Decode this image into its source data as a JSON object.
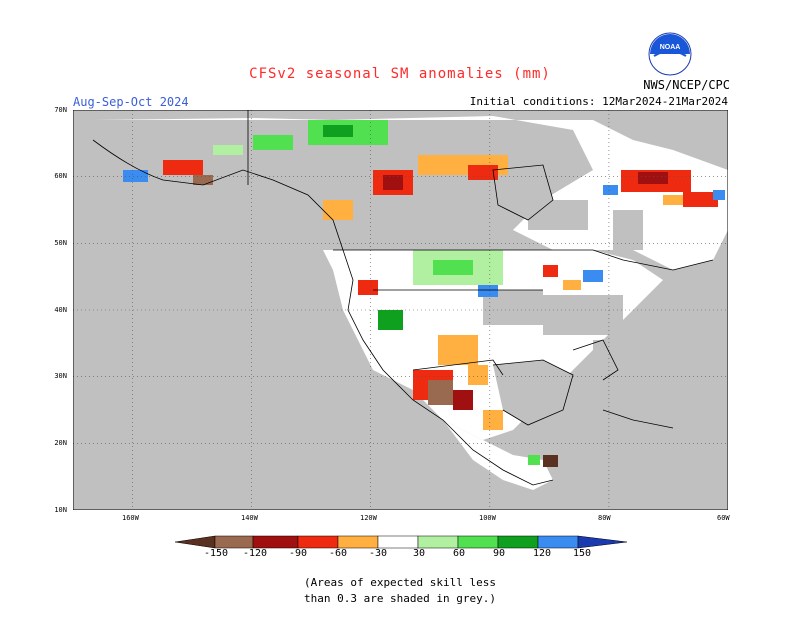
{
  "header": {
    "title": "CFSv2 seasonal SM anomalies (mm)",
    "period": "Aug-Sep-Oct 2024",
    "initial_conditions": "Initial conditions: 12Mar2024-21Mar2024",
    "agency": "NWS/NCEP/CPC",
    "logo_text": "NOAA"
  },
  "axes": {
    "lat_labels": [
      "70N",
      "60N",
      "50N",
      "40N",
      "30N",
      "20N",
      "10N"
    ],
    "lon_labels": [
      "160W",
      "140W",
      "120W",
      "100W",
      "80W",
      "60W"
    ]
  },
  "legend": {
    "labels": [
      "-150",
      "-120",
      "-90",
      "-60",
      "-30",
      "30",
      "60",
      "90",
      "120",
      "150"
    ],
    "colors": {
      "lt_-150": "#5a3020",
      "-150_-120": "#9a6a50",
      "-120_-90": "#a01010",
      "-90_-60": "#ee2a10",
      "-60_-30": "#ffb040",
      "-30_30": "#ffffff",
      "30_60": "#b0f0a0",
      "60_90": "#50e050",
      "90_120": "#10a020",
      "120_150": "#3a8cf0",
      "gt_150": "#1a3ab0"
    }
  },
  "note": {
    "line1": "(Areas of expected skill less",
    "line2": "than 0.3 are shaded in grey.)"
  },
  "map_colors": {
    "ocean": "#ffffff",
    "low_skill": "#c0c0c0",
    "border": "#000000"
  }
}
